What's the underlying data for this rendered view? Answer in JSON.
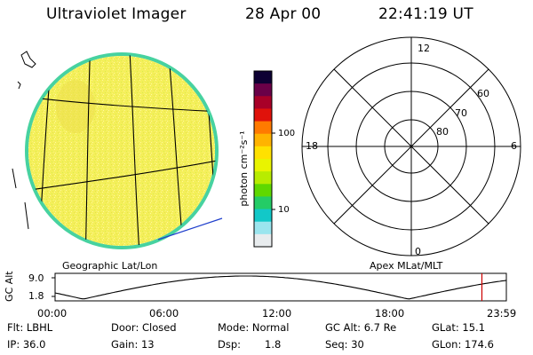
{
  "header": {
    "instrument": "Ultraviolet Imager",
    "date": "28 Apr 00",
    "time": "22:41:19 UT"
  },
  "colorbar": {
    "label": "photon cm⁻²s⁻¹",
    "ticks": [
      "100",
      "10"
    ],
    "colors": [
      "#0d0033",
      "#6a0048",
      "#a80028",
      "#e0120b",
      "#ff7a00",
      "#ffb300",
      "#ffe100",
      "#e9f400",
      "#b8ec00",
      "#5fd800",
      "#24cc66",
      "#12c8c8",
      "#9be5ee",
      "#e8ecee"
    ]
  },
  "globe": {
    "fill_color": "#f4ef5a",
    "edge_color": "#47d2a0"
  },
  "polar": {
    "mlt_labels": [
      "12",
      "6",
      "0",
      "18"
    ],
    "lat_labels": [
      "60",
      "70",
      "80"
    ]
  },
  "plot_labels": {
    "left": "Geographic Lat/Lon",
    "right": "Apex MLat/MLT"
  },
  "gc_alt_plot": {
    "ylabel": "GC Alt",
    "yticks": [
      "9.0",
      "1.8"
    ],
    "xticks": [
      "00:00",
      "06:00",
      "12:00",
      "18:00",
      "23:59"
    ],
    "current_time_marker": "22:41",
    "marker_color": "#cc0000"
  },
  "footer": {
    "flt": "Flt: LBHL",
    "door": "Door: Closed",
    "mode": "Mode: Normal",
    "gc_alt": "GC Alt: 6.7 Re",
    "glat": "GLat:  15.1",
    "ip": "IP: 36.0",
    "gain": "Gain: 13",
    "dsp_label": "Dsp:",
    "dsp_value": "1.8",
    "seq": "Seq: 30",
    "glon": "GLon: 174.6"
  }
}
